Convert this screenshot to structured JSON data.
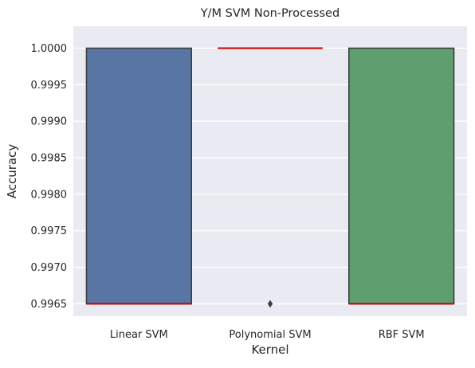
{
  "chart_data": {
    "type": "box",
    "title": "Y/M SVM Non-Processed",
    "xlabel": "Kernel",
    "ylabel": "Accuracy",
    "ylim": [
      0.99633,
      1.0003
    ],
    "yticks": [
      0.9965,
      0.997,
      0.9975,
      0.998,
      0.9985,
      0.999,
      0.9995,
      1.0
    ],
    "ytick_labels": [
      "0.9965",
      "0.9970",
      "0.9975",
      "0.9980",
      "0.9985",
      "0.9990",
      "0.9995",
      "1.0000"
    ],
    "categories": [
      "Linear SVM",
      "Polynomial SVM",
      "RBF SVM"
    ],
    "boxes": [
      {
        "q1": 0.9965,
        "median": 0.9965,
        "q3": 1.0,
        "whisker_low": 0.9965,
        "whisker_high": 1.0,
        "outliers": []
      },
      {
        "q1": 1.0,
        "median": 1.0,
        "q3": 1.0,
        "whisker_low": 1.0,
        "whisker_high": 1.0,
        "outliers": [
          0.9965
        ]
      },
      {
        "q1": 0.9965,
        "median": 0.9965,
        "q3": 1.0,
        "whisker_low": 0.9965,
        "whisker_high": 1.0,
        "outliers": []
      }
    ],
    "colors": {
      "boxes": [
        "#5875a4",
        "#5875a4",
        "#5f9e6e"
      ],
      "median": "#cc0000",
      "box_edge": "#3f3f3f",
      "plot_background": "#eaeaf2",
      "grid": "#ffffff"
    },
    "grid": true,
    "legend": "none"
  }
}
